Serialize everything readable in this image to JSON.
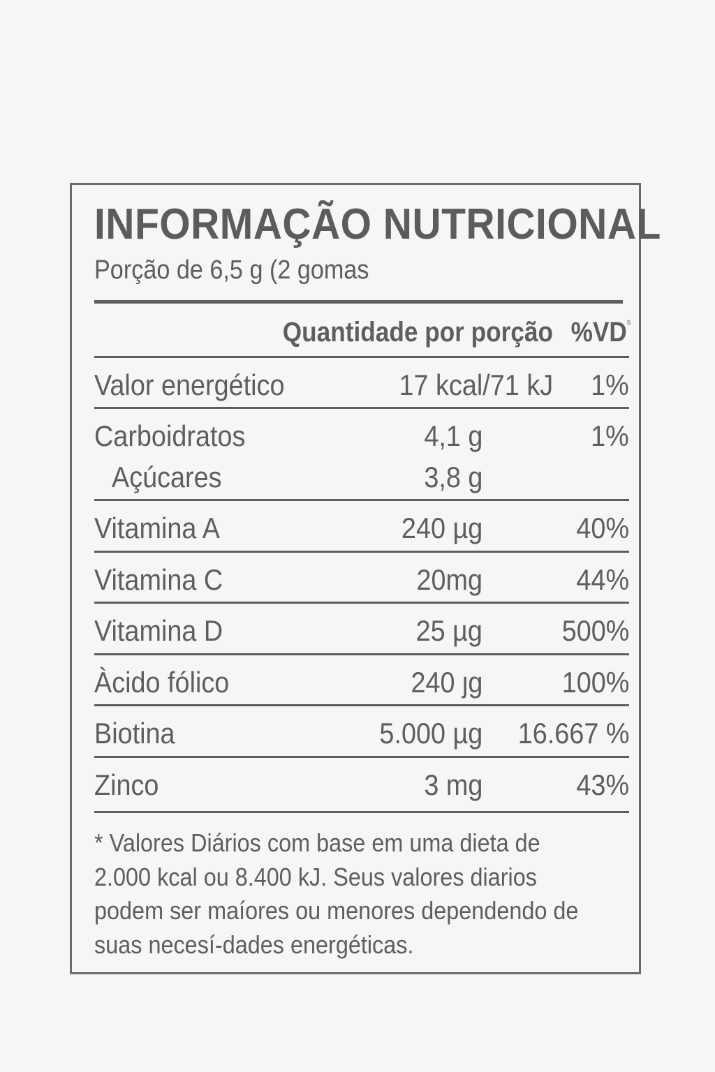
{
  "label": {
    "title": "INFORMAÇÃO NUTRICIONAL",
    "serving": "Porção de 6,5 g (2 gomas",
    "header": {
      "quantity": "Quantidade por porção",
      "dv": "%VD",
      "dv_mark": "s"
    },
    "rows": [
      {
        "name": "Valor energético",
        "amount": "17 kcal/71 kJ",
        "dv": "1%"
      },
      {
        "name": "Carboidratos",
        "amount": "4,1 g",
        "dv": "1%"
      },
      {
        "name": "Açúcares",
        "amount": "3,8 g",
        "dv": ""
      },
      {
        "name": "Vitamina A",
        "amount": "240 µg",
        "dv": "40%"
      },
      {
        "name": "Vitamina C",
        "amount": "20mg",
        "dv": "44%"
      },
      {
        "name": "Vitamina D",
        "amount": "25 µg",
        "dv": "500%"
      },
      {
        "name": "Àcido fólico",
        "amount": "240 ȷg",
        "dv": "100%"
      },
      {
        "name": "Biotina",
        "amount": "5.000 µg",
        "dv": "16.667 %"
      },
      {
        "name": "Zinco",
        "amount": "3 mg",
        "dv": "43%"
      }
    ],
    "footnote": "* Valores Diários com base em uma dieta de 2.000 kcal ou 8.400 kJ. Seus valores diarios podem ser maíores ou menores dependendo de suas necesí-dades energéticas."
  }
}
